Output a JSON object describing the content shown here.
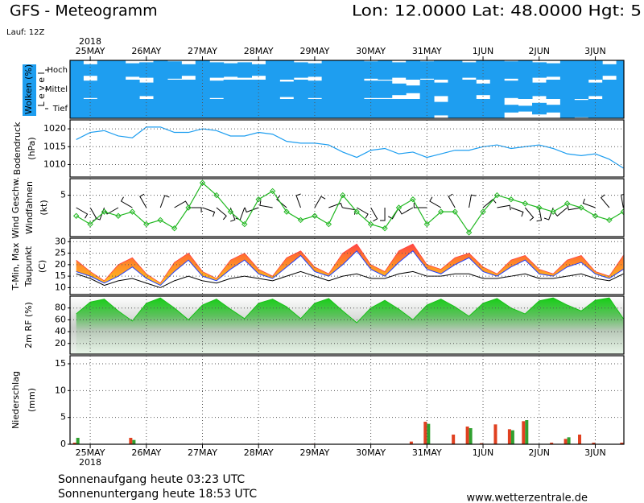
{
  "header": {
    "title": "GFS - Meteogramm",
    "location": "Lon: 12.0000 Lat: 48.0000 Hgt: 5",
    "run": "Lauf: 12Z",
    "year": "2018"
  },
  "chart_data": [
    {
      "type": "cloud-levels",
      "ylabel": "Wolken (%)",
      "ylabel2": "L e v e l",
      "x": [
        -0.25,
        0,
        0.25,
        0.5,
        0.75,
        1,
        1.25,
        1.5,
        1.75,
        2,
        2.25,
        2.5,
        2.75,
        3,
        3.25,
        3.5,
        3.75,
        4,
        4.25,
        4.5,
        4.75,
        5,
        5.25,
        5.5,
        5.75,
        6,
        6.25,
        6.5,
        6.75,
        7,
        7.25,
        7.5,
        7.75,
        8,
        8.25,
        8.5,
        8.75,
        9,
        9.25,
        9.5
      ],
      "xlim": [
        -0.36,
        9.51
      ],
      "xticks": [
        {
          "value": 0,
          "label": "25MAY"
        },
        {
          "value": 1,
          "label": "26MAY"
        },
        {
          "value": 2,
          "label": "27MAY"
        },
        {
          "value": 3,
          "label": "28MAY"
        },
        {
          "value": 4,
          "label": "29MAY"
        },
        {
          "value": 5,
          "label": "30MAY"
        },
        {
          "value": 6,
          "label": "31MAY"
        },
        {
          "value": 7,
          "label": "1JUN"
        },
        {
          "value": 8,
          "label": "2JUN"
        },
        {
          "value": 9,
          "label": "3JUN"
        }
      ],
      "series": [
        {
          "name": "Hoch",
          "color": "#1e9ef0",
          "values": [
            100,
            60,
            100,
            100,
            70,
            80,
            100,
            90,
            60,
            100,
            80,
            70,
            80,
            60,
            100,
            100,
            80,
            70,
            100,
            100,
            100,
            90,
            100,
            80,
            100,
            90,
            100,
            100,
            80,
            100,
            100,
            90,
            100,
            80,
            70,
            100,
            100,
            100,
            60,
            100
          ]
        },
        {
          "name": "Mittel",
          "color": "#1e9ef0",
          "values": [
            100,
            90,
            100,
            100,
            100,
            70,
            100,
            100,
            100,
            100,
            90,
            100,
            100,
            100,
            100,
            80,
            100,
            90,
            100,
            100,
            100,
            90,
            90,
            60,
            40,
            100,
            70,
            100,
            100,
            60,
            100,
            90,
            100,
            70,
            100,
            100,
            100,
            70,
            100,
            100
          ]
        },
        {
          "name": "Tief",
          "color": "#1e9ef0",
          "values": [
            100,
            100,
            100,
            100,
            100,
            100,
            100,
            100,
            100,
            100,
            100,
            100,
            100,
            100,
            100,
            100,
            100,
            100,
            100,
            100,
            100,
            100,
            100,
            100,
            100,
            100,
            70,
            100,
            100,
            100,
            100,
            40,
            30,
            60,
            40,
            100,
            90,
            100,
            100,
            100
          ]
        }
      ]
    },
    {
      "type": "line",
      "ylabel": "Bodendruck",
      "yunit": "(hPa)",
      "x": [
        -0.25,
        0,
        0.25,
        0.5,
        0.75,
        1,
        1.25,
        1.5,
        1.75,
        2,
        2.25,
        2.5,
        2.75,
        3,
        3.25,
        3.5,
        3.75,
        4,
        4.25,
        4.5,
        4.75,
        5,
        5.25,
        5.5,
        5.75,
        6,
        6.25,
        6.5,
        6.75,
        7,
        7.25,
        7.5,
        7.75,
        8,
        8.25,
        8.5,
        8.75,
        9,
        9.25,
        9.5
      ],
      "xlim": [
        -0.36,
        9.51
      ],
      "xticks": [
        {
          "value": 0,
          "label": "25MAY"
        },
        {
          "value": 1,
          "label": "26MAY"
        },
        {
          "value": 2,
          "label": "27MAY"
        },
        {
          "value": 3,
          "label": "28MAY"
        },
        {
          "value": 4,
          "label": "29MAY"
        },
        {
          "value": 5,
          "label": "30MAY"
        },
        {
          "value": 6,
          "label": "31MAY"
        },
        {
          "value": 7,
          "label": "1JUN"
        },
        {
          "value": 8,
          "label": "2JUN"
        },
        {
          "value": 9,
          "label": "3JUN"
        }
      ],
      "ylim": [
        1006.5,
        1022.5
      ],
      "yticks": [
        1010,
        1015,
        1020
      ],
      "grid": true,
      "series": [
        {
          "color": "#1e9ef0",
          "values": [
            1017,
            1019,
            1019.5,
            1018,
            1017.5,
            1020.5,
            1020.5,
            1019,
            1019,
            1020,
            1019.5,
            1018,
            1018,
            1019,
            1018.5,
            1016.5,
            1016,
            1016,
            1015.5,
            1013.5,
            1012,
            1014,
            1014.5,
            1013,
            1013.5,
            1012,
            1013,
            1014,
            1014,
            1015,
            1015.5,
            1014.5,
            1015,
            1015.5,
            1014.5,
            1013,
            1012.5,
            1013,
            1011.5,
            1009
          ]
        }
      ]
    },
    {
      "type": "wind",
      "ylabel": "Wind Geschw.",
      "ylabel2": "Windfahnen",
      "yunit": "(kt)",
      "label_color": "#10b010",
      "x": [
        -0.25,
        0,
        0.25,
        0.5,
        0.75,
        1,
        1.25,
        1.5,
        1.75,
        2,
        2.25,
        2.5,
        2.75,
        3,
        3.25,
        3.5,
        3.75,
        4,
        4.25,
        4.5,
        4.75,
        5,
        5.25,
        5.5,
        5.75,
        6,
        6.25,
        6.5,
        6.75,
        7,
        7.25,
        7.5,
        7.75,
        8,
        8.25,
        8.5,
        8.75,
        9,
        9.25,
        9.5
      ],
      "xlim": [
        -0.36,
        9.51
      ],
      "xticks": [
        {
          "value": 0,
          "label": "25MAY"
        },
        {
          "value": 1,
          "label": "26MAY"
        },
        {
          "value": 2,
          "label": "27MAY"
        },
        {
          "value": 3,
          "label": "28MAY"
        },
        {
          "value": 4,
          "label": "29MAY"
        },
        {
          "value": 5,
          "label": "30MAY"
        },
        {
          "value": 6,
          "label": "31MAY"
        },
        {
          "value": 7,
          "label": "1JUN"
        },
        {
          "value": 8,
          "label": "2JUN"
        },
        {
          "value": 9,
          "label": "3JUN"
        }
      ],
      "ylim": [
        0,
        7
      ],
      "yticks": [
        5
      ],
      "grid": true,
      "series": [
        {
          "color": "#22b822",
          "values": [
            2.5,
            1.5,
            3,
            2.5,
            3,
            1.5,
            2,
            1,
            3.5,
            6.5,
            5,
            3,
            1.5,
            4.5,
            5.5,
            3,
            2,
            2.5,
            1.5,
            5,
            3,
            1.5,
            1,
            3.5,
            4.5,
            1.5,
            3,
            3,
            0.5,
            3,
            5,
            4.5,
            4,
            3.5,
            3,
            4,
            3.5,
            2.5,
            2,
            3
          ]
        }
      ],
      "directions": [
        120,
        150,
        200,
        240,
        300,
        330,
        20,
        60,
        90,
        110,
        130,
        160,
        200,
        250,
        280,
        310,
        340,
        30,
        70,
        100,
        120,
        150,
        180,
        210,
        240,
        270,
        300,
        330,
        10,
        50,
        80,
        110,
        140,
        170,
        200,
        230,
        260,
        290,
        320,
        350
      ],
      "barb_color": "#000000"
    },
    {
      "type": "temperature",
      "ylabel": "T-Min, Max",
      "ylabel2": "Taupunkt",
      "yunit": "(C)",
      "label_color": "#2030e0",
      "x": [
        -0.25,
        0,
        0.25,
        0.5,
        0.75,
        1,
        1.25,
        1.5,
        1.75,
        2,
        2.25,
        2.5,
        2.75,
        3,
        3.25,
        3.5,
        3.75,
        4,
        4.25,
        4.5,
        4.75,
        5,
        5.25,
        5.5,
        5.75,
        6,
        6.25,
        6.5,
        6.75,
        7,
        7.25,
        7.5,
        7.75,
        8,
        8.25,
        8.5,
        8.75,
        9,
        9.25,
        9.5
      ],
      "xlim": [
        -0.36,
        9.51
      ],
      "xticks": [
        {
          "value": 0,
          "label": "25MAY"
        },
        {
          "value": 1,
          "label": "26MAY"
        },
        {
          "value": 2,
          "label": "27MAY"
        },
        {
          "value": 3,
          "label": "28MAY"
        },
        {
          "value": 4,
          "label": "29MAY"
        },
        {
          "value": 5,
          "label": "30MAY"
        },
        {
          "value": 6,
          "label": "31MAY"
        },
        {
          "value": 7,
          "label": "1JUN"
        },
        {
          "value": 8,
          "label": "2JUN"
        },
        {
          "value": 9,
          "label": "3JUN"
        }
      ],
      "ylim": [
        7,
        31.5
      ],
      "yticks": [
        10,
        15,
        20,
        25,
        30
      ],
      "grid": true,
      "series": [
        {
          "color": "#2040ff",
          "values": [
            17,
            15,
            12,
            15,
            19,
            14,
            11,
            17,
            22,
            15,
            13,
            18,
            22,
            16,
            14,
            19,
            24,
            17,
            15,
            20,
            26,
            18,
            15,
            21,
            26,
            18,
            16,
            20,
            23,
            17,
            15,
            19,
            22,
            16,
            15,
            19,
            21,
            16,
            14,
            18
          ]
        },
        {
          "color": "#ff4040",
          "values": [
            22,
            17,
            13,
            20,
            23,
            16,
            12,
            21,
            25,
            17,
            14,
            22,
            25,
            18,
            15,
            23,
            26,
            19,
            16,
            25,
            29,
            20,
            17,
            26,
            29,
            20,
            18,
            23,
            25,
            19,
            16,
            22,
            24,
            18,
            16,
            22,
            24,
            17,
            15,
            24
          ]
        },
        {
          "color": "#000000",
          "values": [
            16,
            14,
            11,
            13,
            14,
            12,
            10,
            13,
            15,
            13,
            12,
            14,
            15,
            14,
            13,
            15,
            17,
            15,
            13,
            15,
            16,
            14,
            14,
            16,
            17,
            15,
            15,
            16,
            16,
            14,
            14,
            15,
            16,
            14,
            14,
            15,
            16,
            14,
            13,
            16
          ]
        }
      ]
    },
    {
      "type": "area",
      "ylabel": "2m RF (%)",
      "label_color": "#10b010",
      "x": [
        -0.25,
        0,
        0.25,
        0.5,
        0.75,
        1,
        1.25,
        1.5,
        1.75,
        2,
        2.25,
        2.5,
        2.75,
        3,
        3.25,
        3.5,
        3.75,
        4,
        4.25,
        4.5,
        4.75,
        5,
        5.25,
        5.5,
        5.75,
        6,
        6.25,
        6.5,
        6.75,
        7,
        7.25,
        7.5,
        7.75,
        8,
        8.25,
        8.5,
        8.75,
        9,
        9.25,
        9.5
      ],
      "xlim": [
        -0.36,
        9.51
      ],
      "xticks": [
        {
          "value": 0,
          "label": "25MAY"
        },
        {
          "value": 1,
          "label": "26MAY"
        },
        {
          "value": 2,
          "label": "27MAY"
        },
        {
          "value": 3,
          "label": "28MAY"
        },
        {
          "value": 4,
          "label": "29MAY"
        },
        {
          "value": 5,
          "label": "30MAY"
        },
        {
          "value": 6,
          "label": "31MAY"
        },
        {
          "value": 7,
          "label": "1JUN"
        },
        {
          "value": 8,
          "label": "2JUN"
        },
        {
          "value": 9,
          "label": "3JUN"
        }
      ],
      "ylim": [
        2,
        100
      ],
      "yticks": [
        20,
        40,
        60,
        80
      ],
      "grid": true,
      "series": [
        {
          "color": "#18c018",
          "values": [
            70,
            90,
            95,
            75,
            58,
            88,
            97,
            80,
            60,
            85,
            95,
            78,
            62,
            88,
            95,
            82,
            62,
            88,
            96,
            75,
            55,
            80,
            93,
            78,
            60,
            85,
            95,
            82,
            66,
            88,
            96,
            80,
            70,
            92,
            97,
            85,
            75,
            93,
            97,
            62
          ]
        }
      ]
    },
    {
      "type": "bar",
      "ylabel": "Niederschlag",
      "yunit": "(mm)",
      "x": [
        -0.25,
        0,
        0.25,
        0.5,
        0.75,
        1,
        1.25,
        1.5,
        1.75,
        2,
        2.25,
        2.5,
        2.75,
        3,
        3.25,
        3.5,
        3.75,
        4,
        4.25,
        4.5,
        4.75,
        5,
        5.25,
        5.5,
        5.75,
        6,
        6.25,
        6.5,
        6.75,
        7,
        7.25,
        7.5,
        7.75,
        8,
        8.25,
        8.5,
        8.75,
        9,
        9.25,
        9.5
      ],
      "xlim": [
        -0.36,
        9.51
      ],
      "xticks": [
        {
          "value": 0,
          "label": "25MAY"
        },
        {
          "value": 1,
          "label": "26MAY"
        },
        {
          "value": 2,
          "label": "27MAY"
        },
        {
          "value": 3,
          "label": "28MAY"
        },
        {
          "value": 4,
          "label": "29MAY"
        },
        {
          "value": 5,
          "label": "30MAY"
        },
        {
          "value": 6,
          "label": "31MAY"
        },
        {
          "value": 7,
          "label": "1JUN"
        },
        {
          "value": 8,
          "label": "2JUN"
        },
        {
          "value": 9,
          "label": "3JUN"
        }
      ],
      "ylim": [
        0,
        16.5
      ],
      "yticks": [
        0,
        5,
        10,
        15
      ],
      "grid": true,
      "series": [
        {
          "color": "#e04020",
          "values": [
            0.3,
            0,
            0,
            0,
            1.2,
            0,
            0,
            0,
            0,
            0,
            0,
            0,
            0,
            0,
            0,
            0,
            0,
            0.1,
            0,
            0,
            0,
            0,
            0,
            0,
            0.5,
            4.2,
            0,
            1.8,
            3.3,
            0.2,
            3.7,
            2.8,
            4.3,
            0,
            0.3,
            1.0,
            1.8,
            0.3,
            0,
            0.3
          ]
        },
        {
          "color": "#30a030",
          "values": [
            1.2,
            0,
            0,
            0,
            0.8,
            0,
            0,
            0,
            0,
            0,
            0,
            0,
            0,
            0,
            0,
            0,
            0,
            0,
            0,
            0,
            0,
            0,
            0,
            0,
            0,
            3.8,
            0,
            0,
            3.0,
            0,
            0,
            2.6,
            4.5,
            0,
            0,
            1.3,
            0,
            0,
            0,
            0
          ]
        }
      ]
    }
  ],
  "footer": {
    "sunrise": "Sonnenaufgang heute 03:23 UTC",
    "sunset": "Sonnenuntergang heute 18:53 UTC",
    "source": "www.wetterzentrale.de"
  }
}
